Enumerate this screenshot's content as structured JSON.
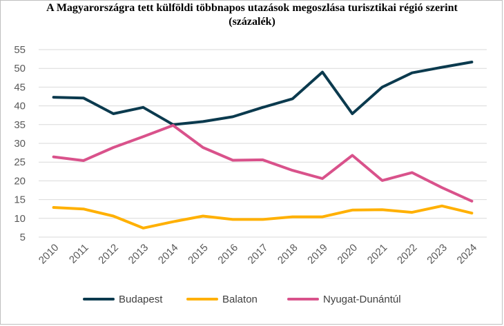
{
  "chart_data": {
    "type": "line",
    "title_line1": "A Magyarországra tett külföldi többnapos utazások megoszlása turisztikai régió szerint",
    "title_line2": "(százalék)",
    "xlabel": "",
    "ylabel": "",
    "ylim": [
      5,
      55
    ],
    "yticks": [
      5,
      10,
      15,
      20,
      25,
      30,
      35,
      40,
      45,
      50,
      55
    ],
    "categories": [
      "2010",
      "2011",
      "2012",
      "2013",
      "2014",
      "2015",
      "2016",
      "2017",
      "2018",
      "2019",
      "2020",
      "2021",
      "2022",
      "2023",
      "2024"
    ],
    "grid": true,
    "legend_position": "bottom",
    "series": [
      {
        "name": "Budapest",
        "color": "#0b3a4e",
        "values": [
          42.3,
          42.1,
          37.9,
          39.6,
          35.0,
          35.8,
          37.1,
          39.6,
          41.9,
          49.0,
          37.9,
          45.0,
          48.8,
          50.3,
          51.7
        ]
      },
      {
        "name": "Balaton",
        "color": "#ffb000",
        "values": [
          12.9,
          12.5,
          10.6,
          7.4,
          9.1,
          10.6,
          9.7,
          9.7,
          10.4,
          10.4,
          12.2,
          12.3,
          11.6,
          13.3,
          11.4
        ]
      },
      {
        "name": "Nyugat-Dunántúl",
        "color": "#d9528b",
        "values": [
          26.4,
          25.4,
          28.9,
          31.8,
          34.8,
          28.9,
          25.5,
          25.6,
          22.8,
          20.6,
          26.8,
          20.1,
          22.2,
          18.2,
          14.6
        ]
      }
    ]
  }
}
